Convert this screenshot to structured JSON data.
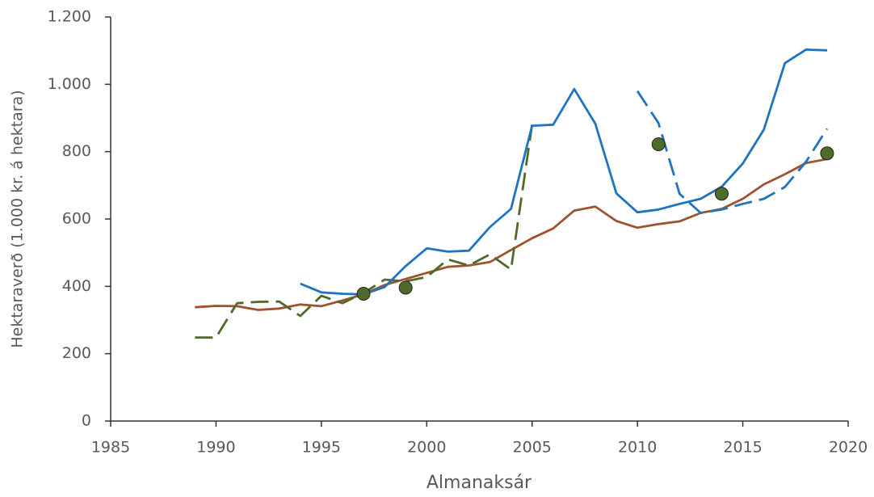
{
  "chart_data": {
    "type": "line",
    "x_label": "Almanaksár",
    "y_label": "Hektaraverð (1.000 kr. á hektara)",
    "xlim": [
      1985,
      2020
    ],
    "xticks": [
      1985,
      1990,
      1995,
      2000,
      2005,
      2010,
      2015,
      2020
    ],
    "ylim": [
      0,
      1200
    ],
    "yticks": [
      0,
      200,
      400,
      600,
      800,
      {
        "value": 1000,
        "label": "1.000"
      },
      {
        "value": 1200,
        "label": "1.200"
      }
    ],
    "grid": false,
    "series": [
      {
        "color": "#a0522d",
        "linestyle": "solid",
        "x": [
          1989,
          1990,
          1991,
          1992,
          1993,
          1994,
          1995,
          1996,
          1997,
          1998,
          1999,
          2000,
          2001,
          2002,
          2003,
          2004,
          2005,
          2006,
          2007,
          2008,
          2009,
          2010,
          2011,
          2012,
          2013,
          2014,
          2015,
          2016,
          2017,
          2018,
          2019
        ],
        "values": [
          338,
          342,
          341,
          330,
          334,
          346,
          341,
          358,
          376,
          404,
          422,
          440,
          458,
          462,
          472,
          508,
          543,
          572,
          625,
          637,
          594,
          574,
          585,
          593,
          618,
          630,
          660,
          703,
          733,
          766,
          778
        ]
      },
      {
        "color": "#4f6b2a",
        "linestyle": "dashed",
        "x": [
          1989,
          1990,
          1991,
          1992,
          1993,
          1994,
          1995,
          1996,
          1997,
          1998,
          1999,
          2000,
          2001,
          2002,
          2003,
          2004,
          2005
        ],
        "values": [
          248,
          248,
          350,
          354,
          355,
          312,
          372,
          350,
          380,
          420,
          415,
          428,
          480,
          462,
          495,
          450,
          880
        ]
      },
      {
        "color": "#1f74c0",
        "linestyle": "solid",
        "x": [
          1994,
          1995,
          1996,
          1997,
          1998,
          1999,
          2000,
          2001,
          2002,
          2003,
          2004,
          2005,
          2006,
          2007,
          2008,
          2009,
          2010,
          2011,
          2012,
          2013,
          2014,
          2015,
          2016,
          2017,
          2018,
          2019
        ],
        "values": [
          408,
          382,
          378,
          376,
          398,
          460,
          513,
          503,
          506,
          576,
          630,
          877,
          880,
          986,
          883,
          676,
          620,
          628,
          645,
          660,
          696,
          765,
          866,
          1063,
          1103,
          1101
        ]
      },
      {
        "color": "#1f74c0",
        "linestyle": "dashed",
        "x": [
          2010,
          2011,
          2012,
          2013,
          2014,
          2015,
          2016,
          2017,
          2018,
          2019
        ],
        "values": [
          980,
          885,
          675,
          618,
          628,
          645,
          660,
          695,
          770,
          868
        ]
      },
      {
        "color": "#4f6b2a",
        "linestyle": "markers",
        "x": [
          1997,
          1999,
          2011,
          2014,
          2019
        ],
        "values": [
          378,
          396,
          822,
          675,
          795
        ]
      }
    ]
  }
}
